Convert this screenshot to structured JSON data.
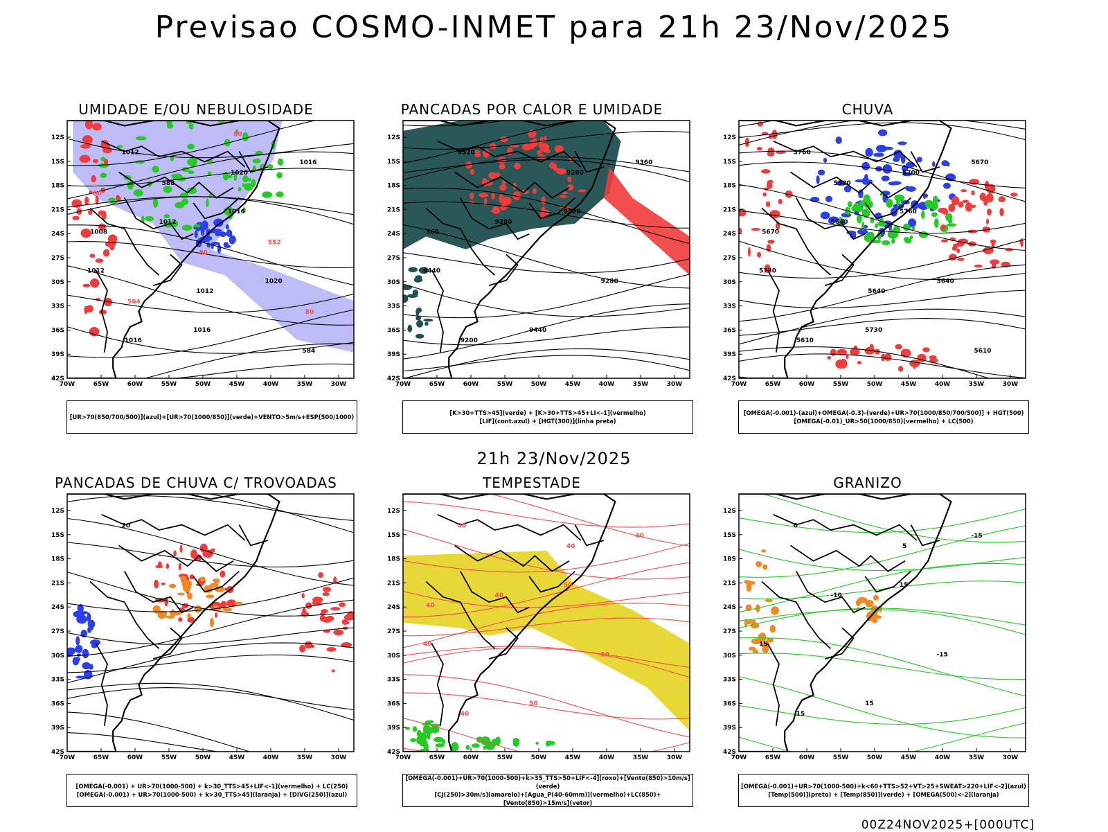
{
  "title": "Previsao COSMO-INMET  para 21h 23/Nov/2025",
  "mid_date": "21h 23/Nov/2025",
  "footer": "00Z24NOV2025+[000UTC]",
  "axes": {
    "lat_labels": [
      "12S",
      "15S",
      "18S",
      "21S",
      "24S",
      "27S",
      "30S",
      "33S",
      "36S",
      "39S",
      "42S"
    ],
    "lon_labels": [
      "70W",
      "65W",
      "60W",
      "55W",
      "50W",
      "45W",
      "40W",
      "35W",
      "30W"
    ]
  },
  "colors": {
    "blue": "#2a3ff0",
    "green": "#22cc22",
    "red": "#f23b3b",
    "dark_teal": "#1f4f4f",
    "orange": "#f08a24",
    "yellow": "#e6d62c",
    "lavender": "#b7b5f5",
    "pink_red": "#ff4b4b"
  },
  "panels": [
    {
      "title": "UMIDADE E/OU NEBULOSIDADE",
      "legend": [
        "[UR>70(850/700/500)](azul)+[UR>70(1000/850)](verde)+VENTO>5m/s+ESP(500/1000)"
      ],
      "labels": [
        "1012",
        "1016",
        "1012",
        "1016",
        "1016",
        "1012",
        "1020",
        "1016",
        "1020",
        "1008",
        "1012",
        "584",
        "588",
        "552",
        "564",
        "80",
        "80",
        "80",
        "80"
      ]
    },
    {
      "title": "PANCADAS POR CALOR E UMIDADE",
      "legend": [
        "[K>30+TTS>45](verde) + [K>30+TTS>45+LI<-1](vermelho)",
        "[LIF](cont.azul) + [HGT(300)](linha preta)"
      ],
      "labels": [
        "9520",
        "9520",
        "9440",
        "9440",
        "9360",
        "9280",
        "9280",
        "9200",
        "9280",
        "360"
      ]
    },
    {
      "title": "CHUVA",
      "legend": [
        "[OMEGA(-0.001)-(azul)+OMEGA(-0.3)-(verde)+UR>70(1000/850/700/500)] + HGT(500)",
        "[OMEGA(-0.01)_UR>50(1000/850)(vermelho) + LC(500)"
      ],
      "labels": [
        "5760",
        "5760",
        "5730",
        "5730",
        "5670",
        "5640",
        "5640",
        "5610",
        "5700",
        "5670",
        "5640",
        "5610",
        "5580"
      ]
    },
    {
      "title": "PANCADAS DE CHUVA C/ TROVOADAS",
      "legend": [
        "[OMEGA(-0.001) + UR>70(1000-500) + k>30_TTS>45+LIF<-1](vermelho) + LC(250)",
        "[OMEGA(-0.001) + UR>70(1000-500) + k>30_TTS>45](laranja) + [DIVG(250)](azul)"
      ],
      "labels": [
        "20"
      ]
    },
    {
      "title": "TEMPESTADE",
      "legend": [
        "[OMEGA(-0.001)+UR>70(1000-500)+k>35_TTS>50+LIF<-4](roxo)+[Vento(850)>10m/s](verde)",
        "[CJ(250)>30m/s](amarelo)+[Agua_P(40-60mm)](vermelho)+LC(850)+[Vento(850)>15m/s](vetor)"
      ],
      "labels": [
        "40",
        "50",
        "40",
        "50",
        "40",
        "40",
        "50",
        "40",
        "40",
        "40"
      ]
    },
    {
      "title": "GRANIZO",
      "legend": [
        "[OMEGA(-0.001)+UR>70(1000-500)+k<60+TTS>52+VT>25+SWEAT>220+LIF<-2](azul)",
        "[Temp(500)](preto) + [Temp(850)](verde) + [OMEGA(500)<-2](laranja)"
      ],
      "labels": [
        "0",
        "15",
        "15",
        "15",
        "-15",
        "-10",
        "-15",
        "15",
        "5"
      ]
    }
  ]
}
